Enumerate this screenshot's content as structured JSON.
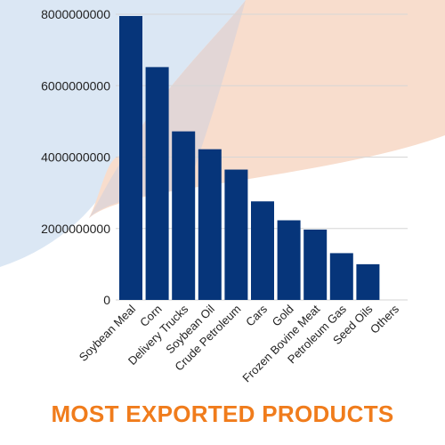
{
  "colors": {
    "bar": "#06357a",
    "title": "#f07c1c",
    "blob_blue": "#dbe7f4",
    "blob_peach": "#f8ddcd",
    "blob_overlap": "#e2d6d6"
  },
  "chart_data": {
    "type": "bar",
    "title": "MOST EXPORTED PRODUCTS",
    "categories": [
      "Soybean Meal",
      "Corn",
      "Delivery Trucks",
      "Soybean Oil",
      "Crude Petroleum",
      "Cars",
      "Gold",
      "Frozen Bovine Meat",
      "Petroleum Gas",
      "Seed Oils",
      "Others"
    ],
    "values": [
      7950000000,
      6520000000,
      4720000000,
      4220000000,
      3650000000,
      2760000000,
      2230000000,
      1970000000,
      1310000000,
      1000000000,
      0
    ],
    "ylim": [
      0,
      8000000000
    ],
    "yticks": [
      0,
      2000000000,
      4000000000,
      6000000000,
      8000000000
    ],
    "ytick_labels": [
      "0",
      "2000000000",
      "4000000000",
      "6000000000",
      "8000000000"
    ],
    "xlabel": "",
    "ylabel": "",
    "grid": true,
    "legend": "none"
  }
}
